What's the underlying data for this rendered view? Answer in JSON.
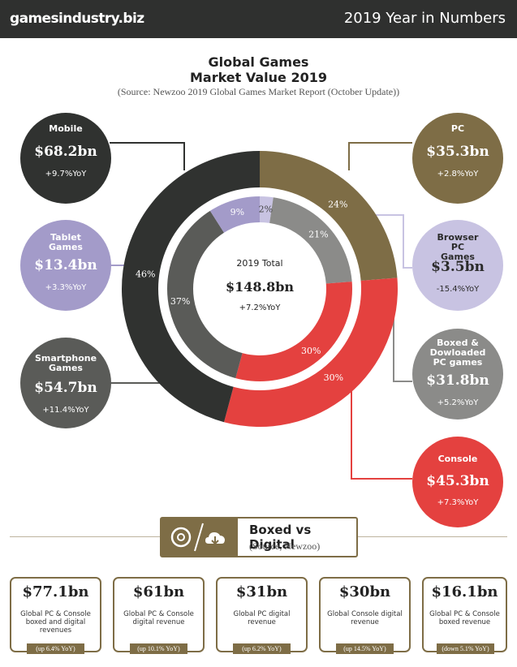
{
  "header": {
    "brand": "gamesindustry.biz",
    "headline": "2019 Year in Numbers"
  },
  "title_line1": "Global Games",
  "title_line2": "Market Value 2019",
  "source": "(Source: Newzoo 2019 Global Games Market Report (October Update))",
  "center": {
    "label": "2019 Total",
    "value": "$148.8bn",
    "yoy": "+7.2%YoY"
  },
  "segments": [
    {
      "name": "Mobile",
      "value": "$68.2bn",
      "yoy": "+9.7%YoY",
      "color": "#303230"
    },
    {
      "name": "PC",
      "value": "$35.3bn",
      "yoy": "+2.8%YoY",
      "color": "#7e6d46"
    },
    {
      "name": "Console",
      "value": "$45.3bn",
      "yoy": "+7.3%YoY",
      "color": "#e4413f"
    },
    {
      "name": "Tablet Games",
      "value": "$13.4bn",
      "yoy": "+3.3%YoY",
      "color": "#a39bc9"
    },
    {
      "name": "Smartphone Games",
      "value": "$54.7bn",
      "yoy": "+11.4%YoY",
      "color": "#5a5b58"
    },
    {
      "name": "Browser PC Games",
      "value": "$3.5bn",
      "yoy": "-15.4%YoY",
      "color": "#c8c3e2"
    },
    {
      "name": "Boxed & Dowloaded PC games",
      "value": "$31.8bn",
      "yoy": "+5.2%YoY",
      "color": "#8b8b89"
    }
  ],
  "chart_data": {
    "type": "pie",
    "title": "Global Games Market Value 2019",
    "total": 148.8,
    "outer": [
      {
        "label": "Mobile",
        "value": 68.2,
        "percent": 46,
        "color": "#303230"
      },
      {
        "label": "PC",
        "value": 35.3,
        "percent": 24,
        "color": "#7e6d46"
      },
      {
        "label": "Console",
        "value": 45.3,
        "percent": 30,
        "color": "#e4413f"
      }
    ],
    "inner": [
      {
        "label": "Browser PC Games",
        "value": 3.5,
        "percent": 2,
        "color": "#c8c3e2"
      },
      {
        "label": "Boxed & Dowloaded PC games",
        "value": 31.8,
        "percent": 21,
        "color": "#8b8b89"
      },
      {
        "label": "Console",
        "value": 45.3,
        "percent": 30,
        "color": "#e4413f"
      },
      {
        "label": "Smartphone Games",
        "value": 54.7,
        "percent": 37,
        "color": "#5a5b58"
      },
      {
        "label": "Tablet Games",
        "value": 13.4,
        "percent": 9,
        "color": "#a39bc9"
      }
    ]
  },
  "boxed_vs_digital": {
    "title": "Boxed vs Digital",
    "source": "(Source, Newzoo)"
  },
  "cards": [
    {
      "value": "$77.1bn",
      "desc": "Global PC & Console boxed and digital revenues",
      "change": "(up 6.4% YoY)"
    },
    {
      "value": "$61bn",
      "desc": "Global PC & Console digital revenue",
      "change": "(up 10.1% YoY)"
    },
    {
      "value": "$31bn",
      "desc": "Global PC digital revenue",
      "change": "(up 6.2% YoY)"
    },
    {
      "value": "$30bn",
      "desc": "Global Console digital revenue",
      "change": "(up 14.5% YoY)"
    },
    {
      "value": "$16.1bn",
      "desc": "Global PC & Console boxed revenue",
      "change": "(down 5.1% YoY)"
    }
  ]
}
